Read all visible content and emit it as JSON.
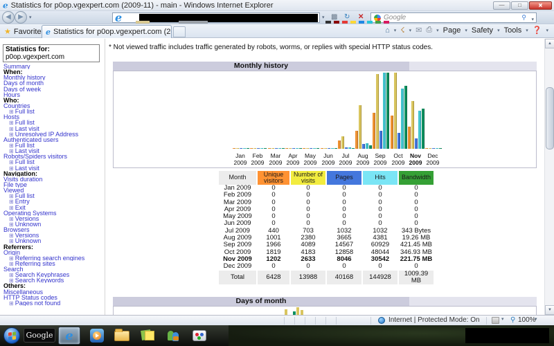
{
  "browser": {
    "window_title": "Statistics for p0op.vgexpert.com (2009-11) - main - Windows Internet Explorer",
    "tab_title": "Statistics for p0op.vgexpert.com (2009-11) - main",
    "favorites_label": "Favorites",
    "search_placeholder": "Google",
    "command_bar": {
      "page": "Page",
      "safety": "Safety",
      "tools": "Tools"
    },
    "status_bar": {
      "zone_text": "Internet | Protected Mode: On",
      "zoom_level": "100%"
    },
    "favicon_colors": [
      "#333333",
      "#8b0000",
      "#e53935",
      "#fdd835",
      "#1e88e5",
      "#26c6da",
      "#43a047",
      "#d81b60"
    ]
  },
  "taskbar": {
    "google_label": "Google"
  },
  "sidebar": {
    "box_title": "Statistics for:",
    "box_value": "p0op.vgexpert.com",
    "items": [
      {
        "type": "link",
        "label": "Summary"
      },
      {
        "type": "head",
        "label": "When:"
      },
      {
        "type": "link",
        "label": "Monthly history"
      },
      {
        "type": "link",
        "label": "Days of month"
      },
      {
        "type": "link",
        "label": "Days of week"
      },
      {
        "type": "link",
        "label": "Hours"
      },
      {
        "type": "head",
        "label": "Who:"
      },
      {
        "type": "link",
        "label": "Countries"
      },
      {
        "type": "sub",
        "label": "Full list"
      },
      {
        "type": "link",
        "label": "Hosts"
      },
      {
        "type": "sub",
        "label": "Full list"
      },
      {
        "type": "sub",
        "label": "Last visit"
      },
      {
        "type": "sub",
        "label": "Unresolved IP Address"
      },
      {
        "type": "link",
        "label": "Authenticated users"
      },
      {
        "type": "sub",
        "label": "Full list"
      },
      {
        "type": "sub",
        "label": "Last visit"
      },
      {
        "type": "link",
        "label": "Robots/Spiders visitors"
      },
      {
        "type": "sub",
        "label": "Full list"
      },
      {
        "type": "sub",
        "label": "Last visit"
      },
      {
        "type": "head",
        "label": "Navigation:"
      },
      {
        "type": "link",
        "label": "Visits duration"
      },
      {
        "type": "link",
        "label": "File type"
      },
      {
        "type": "link",
        "label": "Viewed"
      },
      {
        "type": "sub",
        "label": "Full list"
      },
      {
        "type": "sub",
        "label": "Entry"
      },
      {
        "type": "sub",
        "label": "Exit"
      },
      {
        "type": "link",
        "label": "Operating Systems"
      },
      {
        "type": "sub",
        "label": "Versions"
      },
      {
        "type": "sub",
        "label": "Unknown"
      },
      {
        "type": "link",
        "label": "Browsers"
      },
      {
        "type": "sub",
        "label": "Versions"
      },
      {
        "type": "sub",
        "label": "Unknown"
      },
      {
        "type": "head",
        "label": "Referrers:"
      },
      {
        "type": "link",
        "label": "Origin"
      },
      {
        "type": "sub",
        "label": "Referring search engines"
      },
      {
        "type": "sub",
        "label": "Referring sites"
      },
      {
        "type": "link",
        "label": "Search"
      },
      {
        "type": "sub",
        "label": "Search Keyphrases"
      },
      {
        "type": "sub",
        "label": "Search Keywords"
      },
      {
        "type": "head",
        "label": "Others:"
      },
      {
        "type": "link",
        "label": "Miscellaneous"
      },
      {
        "type": "link",
        "label": "HTTP Status codes"
      },
      {
        "type": "sub",
        "label": "Pages not found"
      }
    ]
  },
  "main": {
    "note": "* Not viewed traffic includes traffic generated by robots, worms, or replies with special HTTP status codes.",
    "section1_title": "Monthly history",
    "section2_title": "Days of month",
    "table": {
      "headers": [
        "Month",
        "Unique visitors",
        "Number of visits",
        "Pages",
        "Hits",
        "Bandwidth"
      ],
      "header_colors": [
        "#ececec",
        "#ff9233",
        "#f2ec3f",
        "#4477dd",
        "#7ae5f5",
        "#35a035"
      ],
      "rows": [
        {
          "cells": [
            "Jan 2009",
            "0",
            "0",
            "0",
            "0",
            "0"
          ],
          "bold": false
        },
        {
          "cells": [
            "Feb 2009",
            "0",
            "0",
            "0",
            "0",
            "0"
          ],
          "bold": false
        },
        {
          "cells": [
            "Mar 2009",
            "0",
            "0",
            "0",
            "0",
            "0"
          ],
          "bold": false
        },
        {
          "cells": [
            "Apr 2009",
            "0",
            "0",
            "0",
            "0",
            "0"
          ],
          "bold": false
        },
        {
          "cells": [
            "May 2009",
            "0",
            "0",
            "0",
            "0",
            "0"
          ],
          "bold": false
        },
        {
          "cells": [
            "Jun 2009",
            "0",
            "0",
            "0",
            "0",
            "0"
          ],
          "bold": false
        },
        {
          "cells": [
            "Jul 2009",
            "440",
            "703",
            "1032",
            "1032",
            "343 Bytes"
          ],
          "bold": false
        },
        {
          "cells": [
            "Aug 2009",
            "1001",
            "2380",
            "3665",
            "4381",
            "19.26 MB"
          ],
          "bold": false
        },
        {
          "cells": [
            "Sep 2009",
            "1966",
            "4089",
            "14567",
            "60929",
            "421.45 MB"
          ],
          "bold": false
        },
        {
          "cells": [
            "Oct 2009",
            "1819",
            "4183",
            "12858",
            "48044",
            "346.93 MB"
          ],
          "bold": false
        },
        {
          "cells": [
            "Nov 2009",
            "1202",
            "2633",
            "8046",
            "30542",
            "221.75 MB"
          ],
          "bold": true
        },
        {
          "cells": [
            "Dec 2009",
            "0",
            "0",
            "0",
            "0",
            "0"
          ],
          "bold": false
        },
        {
          "cells": [
            "Total",
            "6428",
            "13988",
            "40168",
            "144928",
            "1009.39 MB"
          ],
          "bold": false,
          "total": true
        }
      ]
    }
  },
  "chart_data": [
    {
      "type": "bar",
      "title": "Monthly history",
      "categories": [
        "Jan 2009",
        "Feb 2009",
        "Mar 2009",
        "Apr 2009",
        "May 2009",
        "Jun 2009",
        "Jul 2009",
        "Aug 2009",
        "Sep 2009",
        "Oct 2009",
        "Nov 2009",
        "Dec 2009"
      ],
      "current_month": "Nov 2009",
      "current_month_index": 10,
      "legend_position": "table-headers-below",
      "grid": false,
      "note": "Each scale group is normalized independently to full chart height (AWStats style)",
      "series": [
        {
          "name": "Unique visitors",
          "color": "#ee9233",
          "edge": "#b36a1d",
          "scale_group": "visitors",
          "values": [
            0,
            0,
            0,
            0,
            0,
            0,
            440,
            1001,
            1966,
            1819,
            1202,
            0
          ]
        },
        {
          "name": "Number of visits",
          "color": "#d9c55f",
          "edge": "#a89337",
          "scale_group": "visitors",
          "values": [
            0,
            0,
            0,
            0,
            0,
            0,
            703,
            2380,
            4089,
            4183,
            2633,
            0
          ]
        },
        {
          "name": "Pages",
          "color": "#4477dd",
          "edge": "#2a4fa0",
          "scale_group": "pages_hits",
          "values": [
            0,
            0,
            0,
            0,
            0,
            0,
            1032,
            3665,
            14567,
            12858,
            8046,
            0
          ]
        },
        {
          "name": "Hits",
          "color": "#44c4ce",
          "edge": "#2898a6",
          "scale_group": "pages_hits",
          "values": [
            0,
            0,
            0,
            0,
            0,
            0,
            1032,
            4381,
            60929,
            48044,
            30542,
            0
          ]
        },
        {
          "name": "Bandwidth (MB)",
          "color": "#0e9160",
          "edge": "#086442",
          "scale_group": "bandwidth",
          "values": [
            0,
            0,
            0,
            0,
            0,
            0,
            0.0003,
            19.26,
            421.45,
            346.93,
            221.75,
            0
          ]
        }
      ]
    },
    {
      "type": "bar",
      "title": "Days of month",
      "note": "only top sliver of chart visible at screen bottom",
      "visible_bars": [
        {
          "x": 247,
          "h": 8,
          "color": "#d9c55f"
        },
        {
          "x": 259,
          "h": 5,
          "color": "#0e9160"
        },
        {
          "x": 264,
          "h": 11,
          "color": "#d9c55f"
        },
        {
          "x": 270,
          "h": 7,
          "color": "#d9c55f"
        }
      ]
    }
  ]
}
